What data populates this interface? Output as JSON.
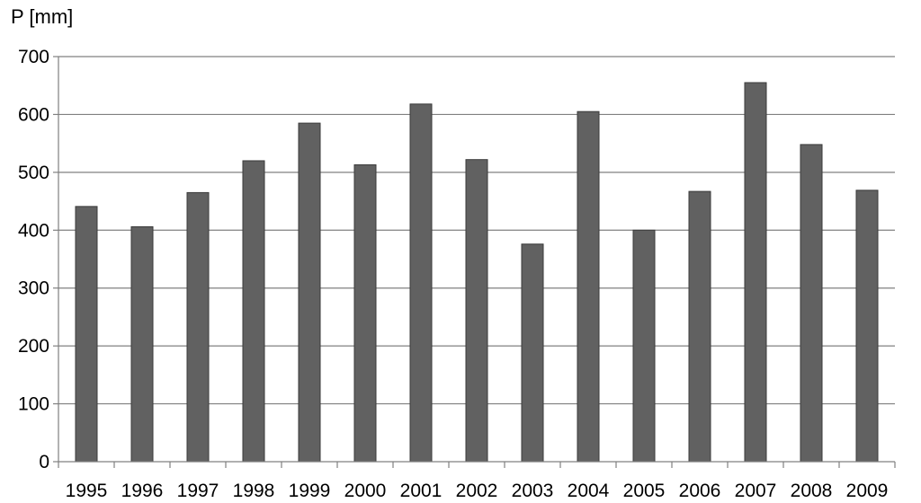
{
  "chart_data": {
    "type": "bar",
    "ylabel": "P [mm]",
    "xlabel": "",
    "categories": [
      "1995",
      "1996",
      "1997",
      "1998",
      "1999",
      "2000",
      "2001",
      "2002",
      "2003",
      "2004",
      "2005",
      "2006",
      "2007",
      "2008",
      "2009"
    ],
    "values": [
      441,
      406,
      465,
      520,
      585,
      513,
      618,
      522,
      376,
      605,
      400,
      467,
      655,
      548,
      469
    ],
    "ylim": [
      0,
      700
    ],
    "yticks": [
      0,
      100,
      200,
      300,
      400,
      500,
      600,
      700
    ],
    "grid": true,
    "legend": "none",
    "colors": {
      "bar_fill": "#616161",
      "bar_stroke": "#3a3a3a",
      "grid": "#808080",
      "axis": "#808080"
    }
  }
}
